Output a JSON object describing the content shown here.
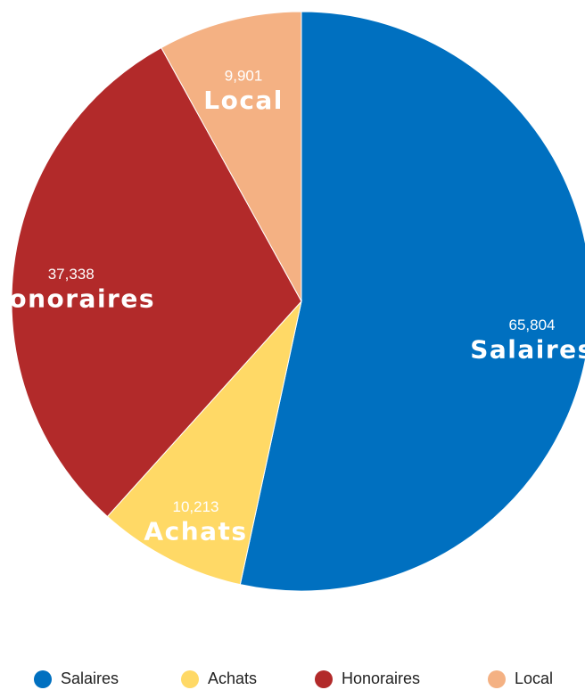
{
  "chart_data": {
    "type": "pie",
    "categories": [
      "Salaires",
      "Achats",
      "Honoraires",
      "Local"
    ],
    "values": [
      65804,
      10213,
      37338,
      9901
    ],
    "value_labels": [
      "65,804",
      "10,213",
      "37,338",
      "9,901"
    ],
    "colors": [
      "#0070c0",
      "#ffd966",
      "#b22a2a",
      "#f4b183"
    ],
    "legend": "bottom"
  }
}
